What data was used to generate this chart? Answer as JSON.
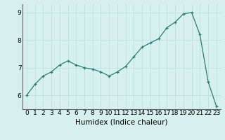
{
  "x": [
    0,
    1,
    2,
    3,
    4,
    5,
    6,
    7,
    8,
    9,
    10,
    11,
    12,
    13,
    14,
    15,
    16,
    17,
    18,
    19,
    20,
    21,
    22,
    23
  ],
  "y": [
    6.0,
    6.4,
    6.7,
    6.85,
    7.1,
    7.25,
    7.1,
    7.0,
    6.95,
    6.85,
    6.7,
    6.85,
    7.05,
    7.4,
    7.75,
    7.9,
    8.05,
    8.45,
    8.65,
    8.95,
    9.0,
    8.2,
    6.5,
    5.6
  ],
  "xlabel": "Humidex (Indice chaleur)",
  "xlim": [
    -0.5,
    23.5
  ],
  "ylim": [
    5.5,
    9.3
  ],
  "yticks": [
    6,
    7,
    8,
    9
  ],
  "xticks": [
    0,
    1,
    2,
    3,
    4,
    5,
    6,
    7,
    8,
    9,
    10,
    11,
    12,
    13,
    14,
    15,
    16,
    17,
    18,
    19,
    20,
    21,
    22,
    23
  ],
  "line_color": "#2d7d6e",
  "bg_color": "#d6f0f0",
  "grid_color": "#b8dede",
  "xlabel_fontsize": 7.5,
  "tick_fontsize": 6.5
}
